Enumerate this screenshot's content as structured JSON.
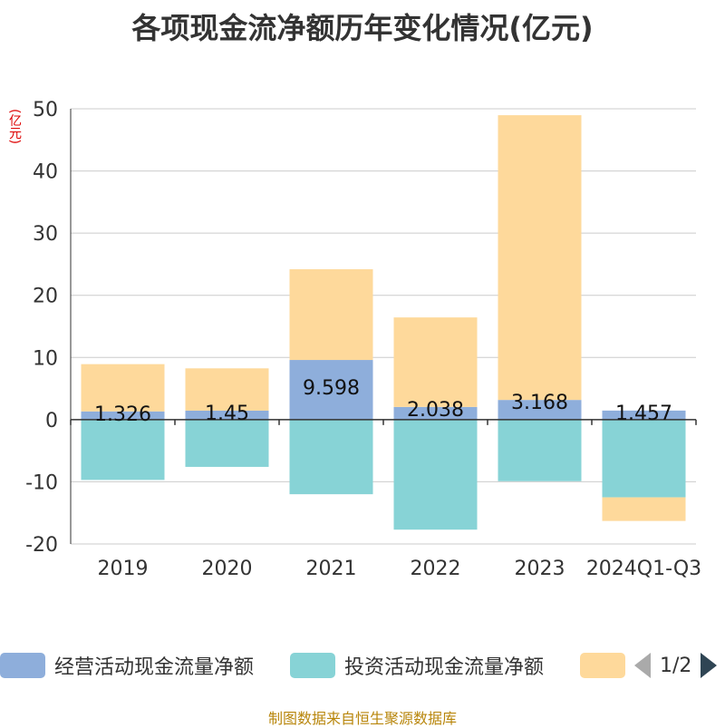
{
  "title": "各项现金流净额历年变化情况(亿元)",
  "unit_label": "(亿元)",
  "source": "制图数据来自恒生聚源数据库",
  "legend": {
    "items": [
      {
        "label": "经营活动现金流量净额",
        "color": "#8eaedb"
      },
      {
        "label": "投资活动现金流量净额",
        "color": "#87d3d6"
      },
      {
        "label": "",
        "color": "#fed99b"
      }
    ],
    "pager": "1/2"
  },
  "chart_data": {
    "type": "bar",
    "stacked": true,
    "categories": [
      "2019",
      "2020",
      "2021",
      "2022",
      "2023",
      "2024Q1-Q3"
    ],
    "ylim": [
      -20,
      50
    ],
    "yticks": [
      -20,
      -10,
      0,
      10,
      20,
      30,
      40,
      50
    ],
    "series": [
      {
        "name": "经营活动现金流量净额",
        "color": "#8eaedb",
        "values": [
          1.326,
          1.45,
          9.598,
          2.038,
          3.168,
          1.457
        ],
        "labels": [
          "1.326",
          "1.45",
          "9.598",
          "2.038",
          "3.168",
          "1.457"
        ]
      },
      {
        "name": "投资活动现金流量净额",
        "color": "#87d3d6",
        "values": [
          -9.7,
          -7.6,
          -12.0,
          -17.7,
          -9.9,
          -12.5
        ]
      },
      {
        "name": "",
        "color": "#fed99b",
        "values": [
          7.6,
          6.8,
          14.6,
          14.4,
          45.8,
          -3.8
        ]
      }
    ]
  }
}
